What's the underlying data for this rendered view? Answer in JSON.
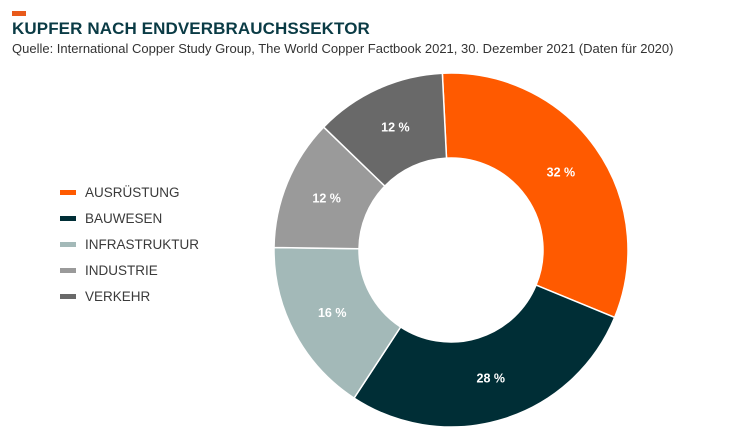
{
  "header": {
    "title": "KUPFER NACH ENDVERBRAUCHSSEKTOR",
    "subtitle": "Quelle: International Copper Study Group, The World Copper Factbook 2021, 30. Dezember 2021 (Daten für 2020)",
    "accent_color": "#e85a1b"
  },
  "chart_data": {
    "type": "pie",
    "style": "donut",
    "legend_position": "left",
    "categories": [
      "AUSRÜSTUNG",
      "BAUWESEN",
      "INFRASTRUKTUR",
      "INDUSTRIE",
      "VERKEHR"
    ],
    "values": [
      32,
      28,
      16,
      12,
      12
    ],
    "value_labels": [
      "32 %",
      "28 %",
      "16 %",
      "12 %",
      "12 %"
    ],
    "colors": [
      "#ff5a00",
      "#002e36",
      "#a3b9b8",
      "#9a9a9a",
      "#696969"
    ]
  }
}
